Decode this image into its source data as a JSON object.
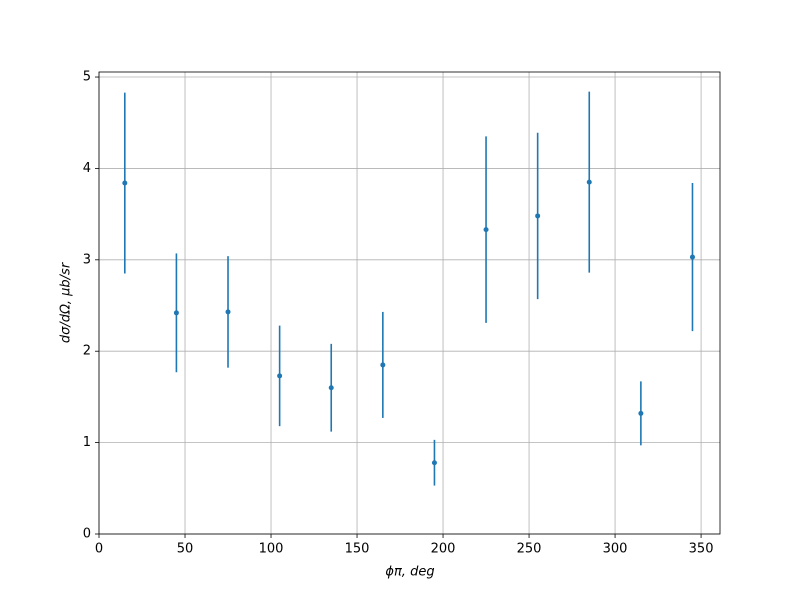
{
  "chart_data": {
    "type": "errorbar",
    "xlabel": "ϕπ, deg",
    "ylabel": "dσ/dΩ, μb/sr",
    "x": [
      15,
      45,
      75,
      105,
      135,
      165,
      195,
      225,
      255,
      285,
      315,
      345
    ],
    "values": [
      3.84,
      2.42,
      2.43,
      1.73,
      1.6,
      1.85,
      0.78,
      3.33,
      3.48,
      3.85,
      1.32,
      3.03
    ],
    "errors": [
      0.99,
      0.65,
      0.61,
      0.55,
      0.48,
      0.58,
      0.25,
      1.02,
      0.91,
      0.99,
      0.35,
      0.81
    ],
    "color": "#1f77b4",
    "xlim": [
      0,
      361
    ],
    "ylim": [
      0,
      5.055
    ],
    "xticks": [
      0,
      50,
      100,
      150,
      200,
      250,
      300,
      350
    ],
    "yticks": [
      0,
      1,
      2,
      3,
      4,
      5
    ],
    "grid": true
  }
}
